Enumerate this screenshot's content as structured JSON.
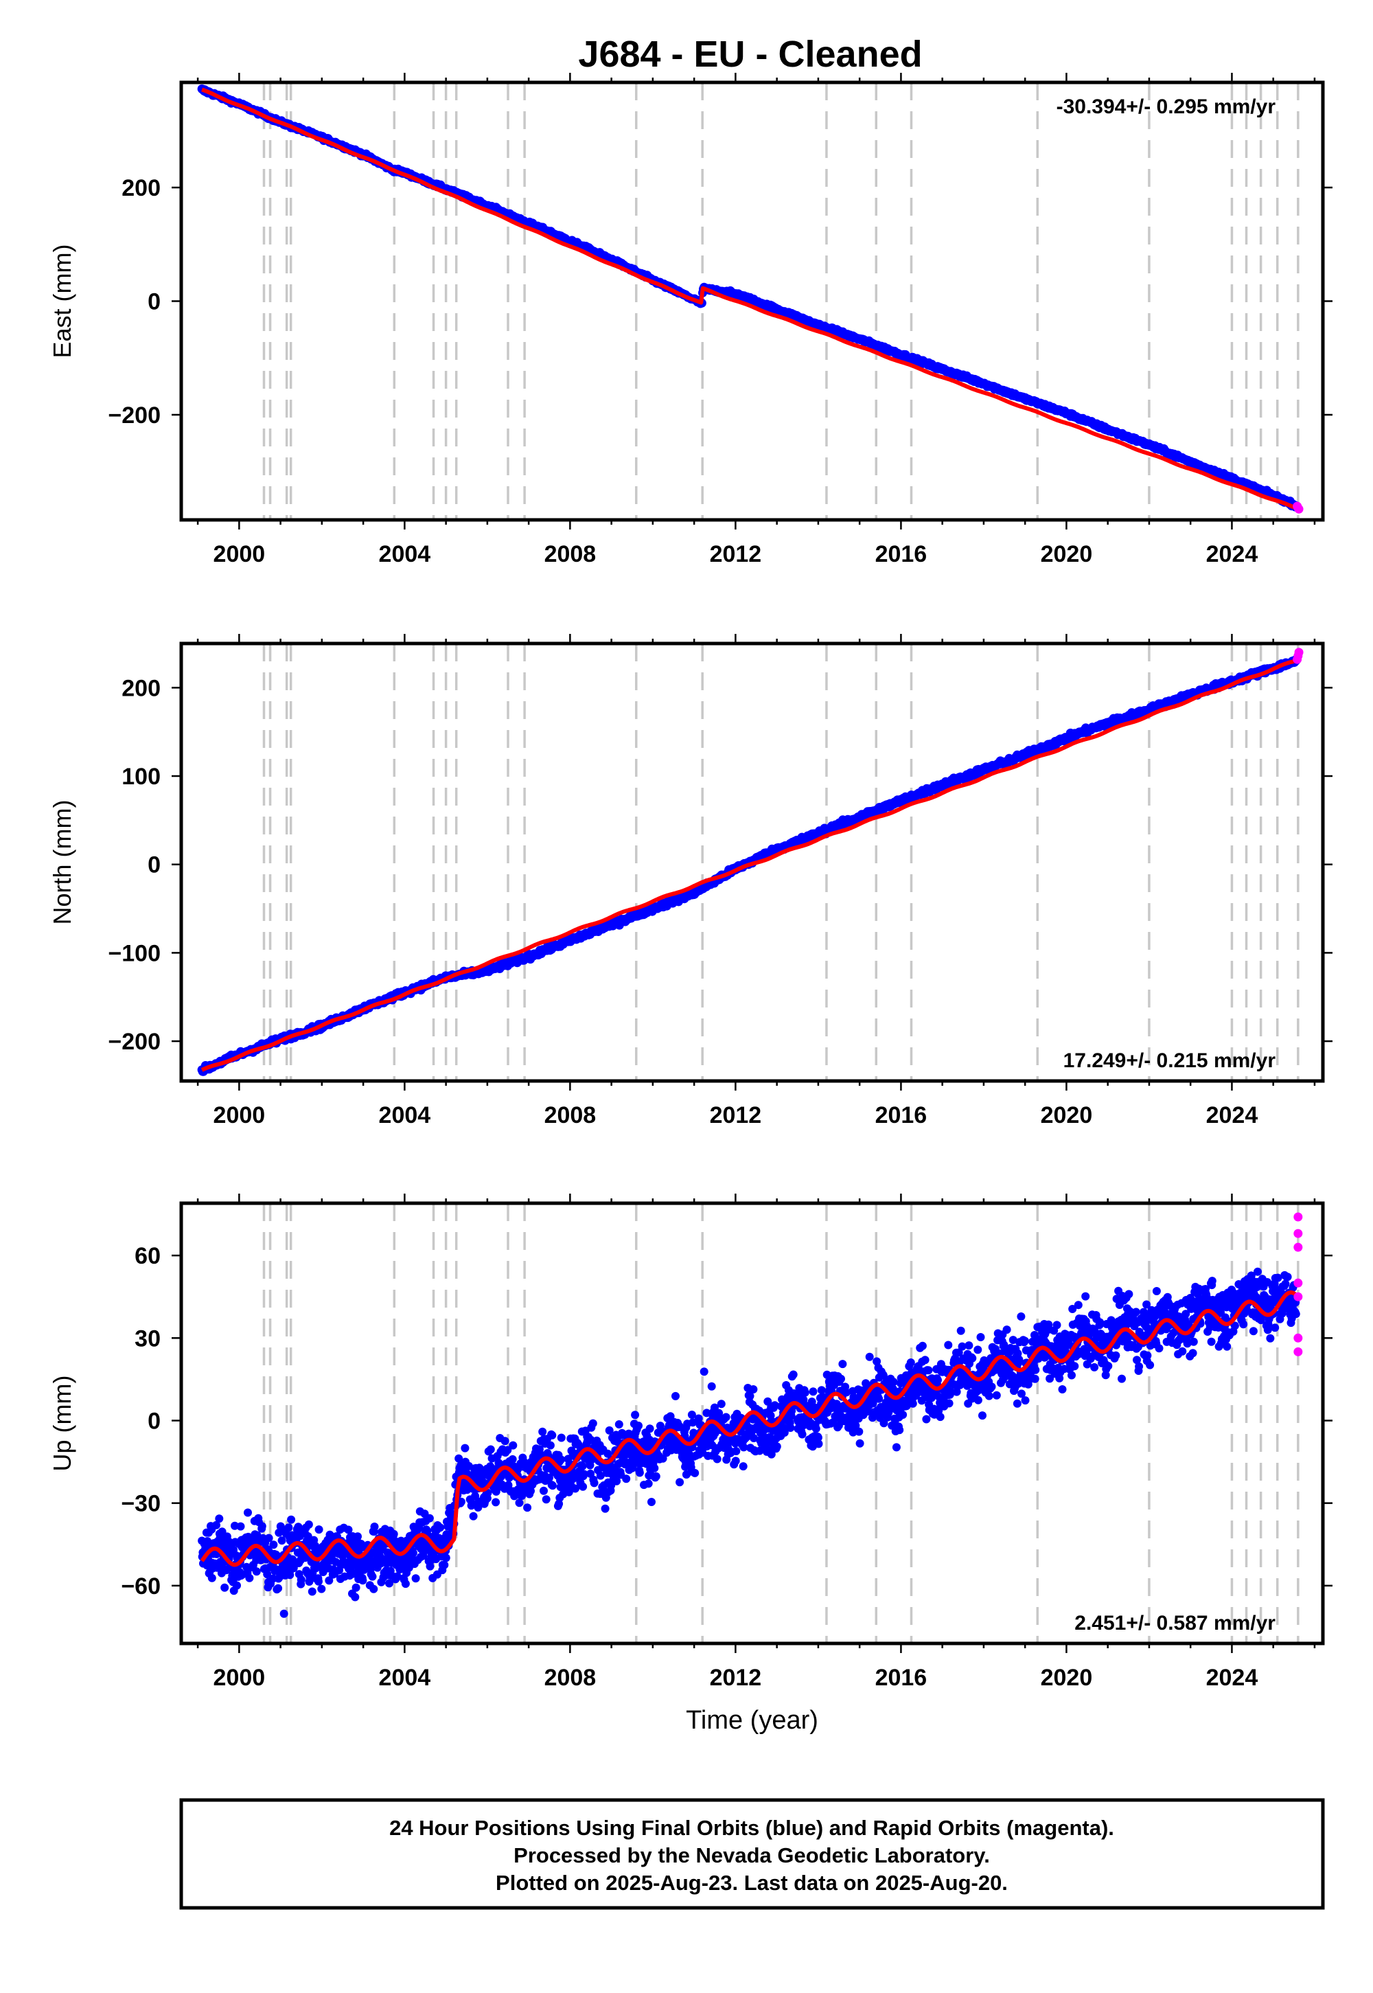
{
  "title": "J684  - EU - Cleaned",
  "colors": {
    "final_orbits": "#0000ff",
    "rapid_orbits": "#ff00ff",
    "model": "#ff0000",
    "event_lines": "#c8c8c8",
    "frame": "#000000"
  },
  "chart_data": [
    {
      "type": "scatter",
      "component": "East",
      "ylabel": "East (mm)",
      "xlabel": "",
      "xlim": [
        1998.6,
        2026.2
      ],
      "ylim": [
        -385,
        385
      ],
      "yticks": [
        -200,
        0,
        200
      ],
      "xticks": [
        2000,
        2004,
        2008,
        2012,
        2016,
        2020,
        2024
      ],
      "rate_label": "-30.394+/- 0.295 mm/yr",
      "rate_position": "top-right",
      "series": [
        {
          "name": "final orbits",
          "color": "#0000ff",
          "x": [
            1999.1,
            2000,
            2001,
            2002,
            2003,
            2003.7,
            2004,
            2005,
            2006,
            2007,
            2008,
            2009,
            2010,
            2011.19,
            2011.21,
            2012,
            2013,
            2014,
            2015,
            2016,
            2017,
            2018,
            2019,
            2020,
            2021,
            2022,
            2023,
            2024,
            2025,
            2025.55
          ],
          "y": [
            372,
            347,
            315,
            288,
            258,
            232,
            226,
            197,
            168,
            137,
            106,
            73,
            37,
            -4,
            22,
            13,
            -14,
            -42,
            -67,
            -94,
            -120,
            -145,
            -172,
            -197,
            -226,
            -253,
            -283,
            -312,
            -342,
            -360
          ]
        },
        {
          "name": "rapid orbits",
          "color": "#ff00ff",
          "x": [
            2025.58,
            2025.6,
            2025.62
          ],
          "y": [
            -361,
            -364,
            -366
          ]
        }
      ],
      "model": {
        "x": [
          1999.1,
          2003.7,
          2011.19,
          2011.21,
          2025.62
        ],
        "y": [
          372,
          232,
          -4,
          22,
          -366
        ]
      }
    },
    {
      "type": "scatter",
      "component": "North",
      "ylabel": "North (mm)",
      "xlabel": "",
      "xlim": [
        1998.6,
        2026.2
      ],
      "ylim": [
        -245,
        250
      ],
      "yticks": [
        -200,
        -100,
        0,
        100,
        200
      ],
      "xticks": [
        2000,
        2004,
        2008,
        2012,
        2016,
        2020,
        2024
      ],
      "rate_label": "17.249+/- 0.215 mm/yr",
      "rate_position": "bottom-right",
      "series": [
        {
          "name": "final orbits",
          "color": "#0000ff",
          "x": [
            1999.1,
            2000,
            2001,
            2002,
            2003,
            2004,
            2005,
            2006,
            2007,
            2008,
            2009,
            2010,
            2011,
            2012,
            2013,
            2014,
            2015,
            2016,
            2017,
            2018,
            2019,
            2020,
            2021,
            2022,
            2023,
            2024,
            2025,
            2025.55
          ],
          "y": [
            -233,
            -215,
            -198,
            -183,
            -163,
            -145,
            -128,
            -120,
            -104,
            -86,
            -68,
            -50,
            -32,
            -5,
            17,
            35,
            54,
            72,
            90,
            107,
            124,
            143,
            160,
            175,
            192,
            207,
            222,
            230
          ]
        },
        {
          "name": "rapid orbits",
          "color": "#ff00ff",
          "x": [
            2025.58,
            2025.6,
            2025.62
          ],
          "y": [
            232,
            236,
            240
          ]
        }
      ],
      "model": {
        "x": [
          1999.1,
          2025.62
        ],
        "y": [
          -233,
          232
        ]
      }
    },
    {
      "type": "scatter",
      "component": "Up",
      "ylabel": "Up (mm)",
      "xlabel": "Time (year)",
      "xlim": [
        1998.6,
        2026.2
      ],
      "ylim": [
        -81,
        79
      ],
      "yticks": [
        -60,
        -30,
        0,
        30,
        60
      ],
      "xticks": [
        2000,
        2004,
        2008,
        2012,
        2016,
        2020,
        2024
      ],
      "rate_label": "2.451+/- 0.587 mm/yr",
      "rate_position": "bottom-right",
      "series": [
        {
          "name": "final orbits",
          "color": "#0000ff",
          "x": [
            1999.1,
            2000,
            2001,
            2002,
            2003,
            2004,
            2005,
            2005.3,
            2006,
            2007,
            2008,
            2009,
            2010,
            2011,
            2012,
            2013,
            2014,
            2015,
            2016,
            2017,
            2018,
            2019,
            2020,
            2021,
            2022,
            2023,
            2024,
            2025,
            2025.55
          ],
          "y": [
            -50,
            -48,
            -50,
            -48,
            -50,
            -47,
            -44,
            -25,
            -20,
            -18,
            -16,
            -13,
            -10,
            -8,
            -4,
            0,
            4,
            6,
            10,
            14,
            18,
            22,
            27,
            30,
            34,
            38,
            42,
            45,
            40
          ]
        },
        {
          "name": "rapid orbits",
          "color": "#ff00ff",
          "x": [
            2025.6,
            2025.6,
            2025.6,
            2025.6,
            2025.6,
            2025.6,
            2025.6
          ],
          "y": [
            74,
            68,
            63,
            50,
            45,
            30,
            25
          ]
        }
      ],
      "model": {
        "x": [
          1999.1,
          2005.2,
          2005.3,
          2025.6
        ],
        "y": [
          -50,
          -44,
          -24,
          44
        ]
      }
    }
  ],
  "event_lines_x": [
    2000.6,
    2000.75,
    2001.15,
    2001.25,
    2003.75,
    2004.7,
    2005.0,
    2005.25,
    2006.5,
    2006.9,
    2009.6,
    2011.2,
    2014.2,
    2015.4,
    2016.25,
    2019.3,
    2022.0,
    2024.0,
    2024.35,
    2024.7,
    2025.1,
    2025.6
  ],
  "footnote": {
    "lines": [
      "24 Hour Positions Using Final Orbits (blue) and Rapid Orbits (magenta).",
      "Processed by the Nevada Geodetic Laboratory.",
      "Plotted on 2025-Aug-23. Last data on 2025-Aug-20."
    ]
  }
}
